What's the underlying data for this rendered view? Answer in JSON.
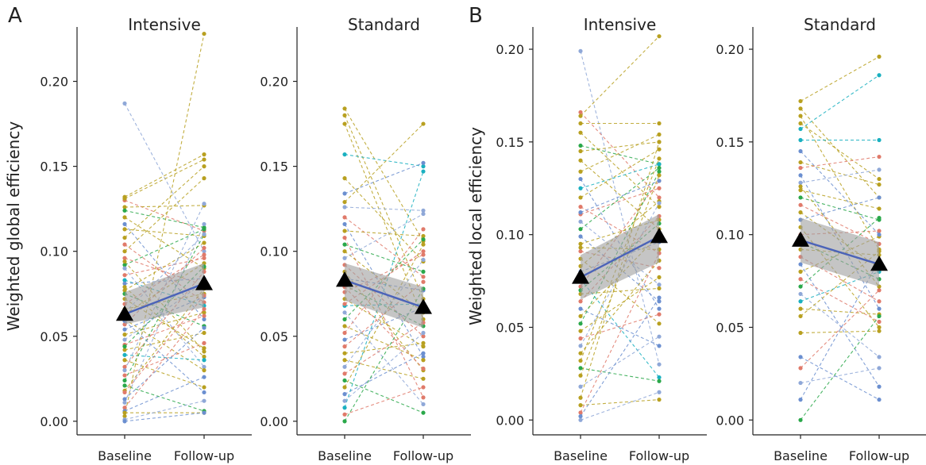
{
  "chart_data": [
    {
      "type": "scatter",
      "panel": "A",
      "title": "Intensive",
      "ylabel": "Weighted global efficiency",
      "ylim": [
        -0.008,
        0.232
      ],
      "yticks": [
        0.0,
        0.05,
        0.1,
        0.15,
        0.2
      ],
      "ytick_labels": [
        "0.00",
        "0.05",
        "0.10",
        "0.15",
        "0.20"
      ],
      "categories": [
        "Baseline",
        "Follow-up"
      ],
      "mean": [
        0.063,
        0.081
      ],
      "ci_lower": [
        0.057,
        0.067
      ],
      "ci_upper": [
        0.076,
        0.093
      ],
      "pairs": [
        [
          0.187,
          0.1,
          "#8fa8d8"
        ],
        [
          0.132,
          0.157,
          "#b8a020"
        ],
        [
          0.13,
          0.112,
          "#e07a6a"
        ],
        [
          0.126,
          0.127,
          "#b8a020"
        ],
        [
          0.124,
          0.114,
          "#2aa84a"
        ],
        [
          0.12,
          0.09,
          "#b8a020"
        ],
        [
          0.116,
          0.06,
          "#6b8fd0"
        ],
        [
          0.113,
          0.109,
          "#b8a020"
        ],
        [
          0.108,
          0.15,
          "#b8a020"
        ],
        [
          0.104,
          0.07,
          "#e07a6a"
        ],
        [
          0.1,
          0.143,
          "#b8a020"
        ],
        [
          0.096,
          0.08,
          "#e07a6a"
        ],
        [
          0.092,
          0.113,
          "#2aa84a"
        ],
        [
          0.09,
          0.032,
          "#8fa8d8"
        ],
        [
          0.086,
          0.096,
          "#e07a6a"
        ],
        [
          0.083,
          0.068,
          "#1ab0c0"
        ],
        [
          0.081,
          0.084,
          "#6b8fd0"
        ],
        [
          0.079,
          0.038,
          "#b8a020"
        ],
        [
          0.077,
          0.105,
          "#b8a020"
        ],
        [
          0.075,
          0.056,
          "#2aa84a"
        ],
        [
          0.072,
          0.043,
          "#b8a020"
        ],
        [
          0.069,
          0.098,
          "#e07a6a"
        ],
        [
          0.066,
          0.075,
          "#b8a020"
        ],
        [
          0.063,
          0.093,
          "#b8a020"
        ],
        [
          0.06,
          0.03,
          "#b8a020"
        ],
        [
          0.057,
          0.102,
          "#e07a6a"
        ],
        [
          0.054,
          0.073,
          "#6b8fd0"
        ],
        [
          0.051,
          0.064,
          "#b8a020"
        ],
        [
          0.048,
          0.082,
          "#8fa8d8"
        ],
        [
          0.045,
          0.062,
          "#e07a6a"
        ],
        [
          0.042,
          0.052,
          "#b8a020"
        ],
        [
          0.039,
          0.036,
          "#1ab0c0"
        ],
        [
          0.036,
          0.02,
          "#b8a020"
        ],
        [
          0.032,
          0.088,
          "#e07a6a"
        ],
        [
          0.03,
          0.128,
          "#8fa8d8"
        ],
        [
          0.027,
          0.046,
          "#e07a6a"
        ],
        [
          0.024,
          0.11,
          "#2aa84a"
        ],
        [
          0.021,
          0.006,
          "#2aa84a"
        ],
        [
          0.018,
          0.078,
          "#b8a020"
        ],
        [
          0.013,
          0.055,
          "#6b8fd0"
        ],
        [
          0.011,
          0.116,
          "#8fa8d8"
        ],
        [
          0.008,
          0.066,
          "#e07a6a"
        ],
        [
          0.006,
          0.026,
          "#6b8fd0"
        ],
        [
          0.005,
          0.005,
          "#b8a020"
        ],
        [
          0.003,
          0.228,
          "#b8a020"
        ],
        [
          0.001,
          0.012,
          "#8fa8d8"
        ],
        [
          0.0,
          0.005,
          "#6b8fd0"
        ],
        [
          0.131,
          0.154,
          "#b8a020"
        ],
        [
          0.094,
          0.041,
          "#b8a020"
        ],
        [
          0.064,
          0.11,
          "#8fa8d8"
        ],
        [
          0.059,
          0.017,
          "#6b8fd0"
        ],
        [
          0.044,
          0.091,
          "#2aa84a"
        ],
        [
          0.017,
          0.074,
          "#e07a6a"
        ]
      ]
    },
    {
      "type": "scatter",
      "panel": "",
      "title": "Standard",
      "ylabel": "",
      "ylim": [
        -0.008,
        0.232
      ],
      "yticks": [
        0.0,
        0.05,
        0.1,
        0.15,
        0.2
      ],
      "ytick_labels": [
        "0.00",
        "0.05",
        "0.10",
        "0.15",
        "0.20"
      ],
      "categories": [
        "Baseline",
        "Follow-up"
      ],
      "mean": [
        0.083,
        0.067
      ],
      "ci_lower": [
        0.071,
        0.055
      ],
      "ci_upper": [
        0.093,
        0.079
      ],
      "pairs": [
        [
          0.184,
          0.106,
          "#b8a020"
        ],
        [
          0.18,
          0.072,
          "#b8a020"
        ],
        [
          0.175,
          0.06,
          "#b8a020"
        ],
        [
          0.157,
          0.15,
          "#1ab0c0"
        ],
        [
          0.143,
          0.094,
          "#b8a020"
        ],
        [
          0.134,
          0.152,
          "#6b8fd0"
        ],
        [
          0.129,
          0.175,
          "#b8a020"
        ],
        [
          0.126,
          0.124,
          "#8fa8d8"
        ],
        [
          0.12,
          0.085,
          "#e07a6a"
        ],
        [
          0.116,
          0.038,
          "#6b8fd0"
        ],
        [
          0.112,
          0.109,
          "#b8a020"
        ],
        [
          0.108,
          0.014,
          "#e07a6a"
        ],
        [
          0.104,
          0.088,
          "#2aa84a"
        ],
        [
          0.1,
          0.064,
          "#b8a020"
        ],
        [
          0.096,
          0.122,
          "#8fa8d8"
        ],
        [
          0.092,
          0.05,
          "#e07a6a"
        ],
        [
          0.088,
          0.03,
          "#b8a020"
        ],
        [
          0.084,
          0.077,
          "#6b8fd0"
        ],
        [
          0.08,
          0.056,
          "#2aa84a"
        ],
        [
          0.076,
          0.098,
          "#e07a6a"
        ],
        [
          0.072,
          0.044,
          "#b8a020"
        ],
        [
          0.068,
          0.069,
          "#1ab0c0"
        ],
        [
          0.064,
          0.01,
          "#8fa8d8"
        ],
        [
          0.06,
          0.107,
          "#2aa84a"
        ],
        [
          0.056,
          0.036,
          "#b8a020"
        ],
        [
          0.052,
          0.113,
          "#e07a6a"
        ],
        [
          0.048,
          0.067,
          "#6b8fd0"
        ],
        [
          0.044,
          0.082,
          "#e07a6a"
        ],
        [
          0.04,
          0.046,
          "#b8a020"
        ],
        [
          0.036,
          0.025,
          "#b8a020"
        ],
        [
          0.032,
          0.095,
          "#8fa8d8"
        ],
        [
          0.028,
          0.058,
          "#e07a6a"
        ],
        [
          0.024,
          0.005,
          "#2aa84a"
        ],
        [
          0.02,
          0.104,
          "#b8a020"
        ],
        [
          0.016,
          0.04,
          "#6b8fd0"
        ],
        [
          0.012,
          0.052,
          "#8fa8d8"
        ],
        [
          0.008,
          0.147,
          "#1ab0c0"
        ],
        [
          0.004,
          0.02,
          "#e07a6a"
        ],
        [
          0.0,
          0.078,
          "#2aa84a"
        ],
        [
          0.069,
          0.1,
          "#e07a6a"
        ],
        [
          0.079,
          0.031,
          "#e07a6a"
        ]
      ]
    },
    {
      "type": "scatter",
      "panel": "B",
      "title": "Intensive",
      "ylabel": "Weighted local efficiency",
      "ylim": [
        -0.008,
        0.212
      ],
      "yticks": [
        0.0,
        0.05,
        0.1,
        0.15,
        0.2
      ],
      "ytick_labels": [
        "0.00",
        "0.05",
        "0.10",
        "0.15",
        "0.20"
      ],
      "categories": [
        "Baseline",
        "Follow-up"
      ],
      "mean": [
        0.077,
        0.099
      ],
      "ci_lower": [
        0.065,
        0.085
      ],
      "ci_upper": [
        0.089,
        0.111
      ],
      "pairs": [
        [
          0.199,
          0.03,
          "#8fa8d8"
        ],
        [
          0.166,
          0.12,
          "#e07a6a"
        ],
        [
          0.164,
          0.207,
          "#b8a020"
        ],
        [
          0.16,
          0.16,
          "#b8a020"
        ],
        [
          0.155,
          0.115,
          "#b8a020"
        ],
        [
          0.148,
          0.138,
          "#2aa84a"
        ],
        [
          0.145,
          0.15,
          "#b8a020"
        ],
        [
          0.14,
          0.103,
          "#b8a020"
        ],
        [
          0.134,
          0.154,
          "#b8a020"
        ],
        [
          0.13,
          0.06,
          "#6b8fd0"
        ],
        [
          0.125,
          0.138,
          "#1ab0c0"
        ],
        [
          0.12,
          0.146,
          "#b8a020"
        ],
        [
          0.115,
          0.09,
          "#e07a6a"
        ],
        [
          0.111,
          0.125,
          "#e07a6a"
        ],
        [
          0.107,
          0.073,
          "#8fa8d8"
        ],
        [
          0.103,
          0.136,
          "#2aa84a"
        ],
        [
          0.099,
          0.064,
          "#6b8fd0"
        ],
        [
          0.095,
          0.108,
          "#b8a020"
        ],
        [
          0.091,
          0.082,
          "#e07a6a"
        ],
        [
          0.087,
          0.052,
          "#b8a020"
        ],
        [
          0.083,
          0.118,
          "#b8a020"
        ],
        [
          0.08,
          0.096,
          "#6b8fd0"
        ],
        [
          0.076,
          0.023,
          "#1ab0c0"
        ],
        [
          0.072,
          0.129,
          "#e07a6a"
        ],
        [
          0.068,
          0.071,
          "#b8a020"
        ],
        [
          0.064,
          0.11,
          "#e07a6a"
        ],
        [
          0.06,
          0.04,
          "#6b8fd0"
        ],
        [
          0.056,
          0.1,
          "#b8a020"
        ],
        [
          0.052,
          0.134,
          "#2aa84a"
        ],
        [
          0.048,
          0.077,
          "#b8a020"
        ],
        [
          0.044,
          0.057,
          "#e07a6a"
        ],
        [
          0.04,
          0.117,
          "#8fa8d8"
        ],
        [
          0.036,
          0.086,
          "#b8a020"
        ],
        [
          0.032,
          0.141,
          "#b8a020"
        ],
        [
          0.028,
          0.021,
          "#2aa84a"
        ],
        [
          0.024,
          0.132,
          "#b8a020"
        ],
        [
          0.018,
          0.045,
          "#8fa8d8"
        ],
        [
          0.012,
          0.15,
          "#b8a020"
        ],
        [
          0.008,
          0.011,
          "#b8a020"
        ],
        [
          0.004,
          0.09,
          "#e07a6a"
        ],
        [
          0.002,
          0.066,
          "#6b8fd0"
        ],
        [
          0.0,
          0.015,
          "#8fa8d8"
        ],
        [
          0.112,
          0.129,
          "#6b8fd0"
        ],
        [
          0.093,
          0.092,
          "#b8a020"
        ],
        [
          0.07,
          0.106,
          "#2aa84a"
        ]
      ]
    },
    {
      "type": "scatter",
      "panel": "",
      "title": "Standard",
      "ylabel": "",
      "ylim": [
        -0.008,
        0.212
      ],
      "yticks": [
        0.0,
        0.05,
        0.1,
        0.15,
        0.2
      ],
      "ytick_labels": [
        "0.00",
        "0.05",
        "0.10",
        "0.15",
        "0.20"
      ],
      "categories": [
        "Baseline",
        "Follow-up"
      ],
      "mean": [
        0.097,
        0.084
      ],
      "ci_lower": [
        0.085,
        0.072
      ],
      "ci_upper": [
        0.109,
        0.096
      ],
      "pairs": [
        [
          0.172,
          0.196,
          "#b8a020"
        ],
        [
          0.168,
          0.12,
          "#b8a020"
        ],
        [
          0.164,
          0.092,
          "#b8a020"
        ],
        [
          0.16,
          0.13,
          "#b8a020"
        ],
        [
          0.157,
          0.186,
          "#1ab0c0"
        ],
        [
          0.151,
          0.151,
          "#1ab0c0"
        ],
        [
          0.139,
          0.127,
          "#b8a020"
        ],
        [
          0.136,
          0.142,
          "#e07a6a"
        ],
        [
          0.132,
          0.06,
          "#6b8fd0"
        ],
        [
          0.128,
          0.135,
          "#8fa8d8"
        ],
        [
          0.124,
          0.114,
          "#b8a020"
        ],
        [
          0.12,
          0.108,
          "#2aa84a"
        ],
        [
          0.116,
          0.095,
          "#e07a6a"
        ],
        [
          0.112,
          0.082,
          "#b8a020"
        ],
        [
          0.108,
          0.12,
          "#6b8fd0"
        ],
        [
          0.104,
          0.05,
          "#b8a020"
        ],
        [
          0.1,
          0.102,
          "#e07a6a"
        ],
        [
          0.096,
          0.076,
          "#2aa84a"
        ],
        [
          0.092,
          0.089,
          "#b8a020"
        ],
        [
          0.088,
          0.064,
          "#e07a6a"
        ],
        [
          0.084,
          0.018,
          "#6b8fd0"
        ],
        [
          0.08,
          0.099,
          "#b8a020"
        ],
        [
          0.076,
          0.053,
          "#e07a6a"
        ],
        [
          0.072,
          0.109,
          "#2aa84a"
        ],
        [
          0.068,
          0.034,
          "#8fa8d8"
        ],
        [
          0.064,
          0.08,
          "#1ab0c0"
        ],
        [
          0.06,
          0.057,
          "#b8a020"
        ],
        [
          0.056,
          0.091,
          "#b8a020"
        ],
        [
          0.047,
          0.048,
          "#b8a020"
        ],
        [
          0.034,
          0.011,
          "#6b8fd0"
        ],
        [
          0.028,
          0.07,
          "#e07a6a"
        ],
        [
          0.02,
          0.028,
          "#8fa8d8"
        ],
        [
          0.011,
          0.086,
          "#6b8fd0"
        ],
        [
          0.0,
          0.056,
          "#2aa84a"
        ],
        [
          0.145,
          0.1,
          "#6b8fd0"
        ],
        [
          0.126,
          0.072,
          "#b8a020"
        ]
      ]
    }
  ]
}
